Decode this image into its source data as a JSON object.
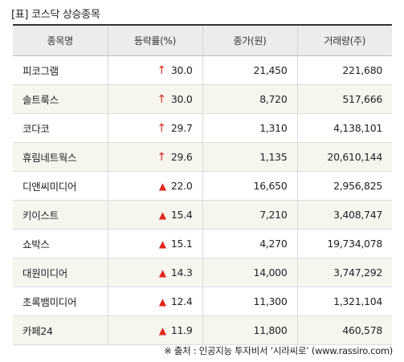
{
  "title": "[표] 코스닥 상승종목",
  "columns": [
    "종목명",
    "등락률(%)",
    "종가(원)",
    "거래량(주)"
  ],
  "indicator_icons": {
    "upper_limit": "up-arrow-icon",
    "up": "up-triangle-icon"
  },
  "accent_color": "#e0261d",
  "rows": [
    {
      "name": "피코그램",
      "indicator": "↑",
      "rate": "30.0",
      "price": "21,450",
      "volume": "221,680"
    },
    {
      "name": "솔트룩스",
      "indicator": "↑",
      "rate": "30.0",
      "price": "8,720",
      "volume": "517,666"
    },
    {
      "name": "코다코",
      "indicator": "↑",
      "rate": "29.7",
      "price": "1,310",
      "volume": "4,138,101"
    },
    {
      "name": "휴림네트웍스",
      "indicator": "↑",
      "rate": "29.6",
      "price": "1,135",
      "volume": "20,610,144"
    },
    {
      "name": "디앤씨미디어",
      "indicator": "▲",
      "rate": "22.0",
      "price": "16,650",
      "volume": "2,956,825"
    },
    {
      "name": "키이스트",
      "indicator": "▲",
      "rate": "15.4",
      "price": "7,210",
      "volume": "3,408,747"
    },
    {
      "name": "쇼박스",
      "indicator": "▲",
      "rate": "15.1",
      "price": "4,270",
      "volume": "19,734,078"
    },
    {
      "name": "대원미디어",
      "indicator": "▲",
      "rate": "14.3",
      "price": "14,000",
      "volume": "3,747,292"
    },
    {
      "name": "초록뱀미디어",
      "indicator": "▲",
      "rate": "12.4",
      "price": "11,300",
      "volume": "1,321,104"
    },
    {
      "name": "카페24",
      "indicator": "▲",
      "rate": "11.9",
      "price": "11,800",
      "volume": "460,578"
    }
  ],
  "source": "※ 출처 : 인공지능 투자비서 ‘시라씨로’ (www.rassiro.com)"
}
